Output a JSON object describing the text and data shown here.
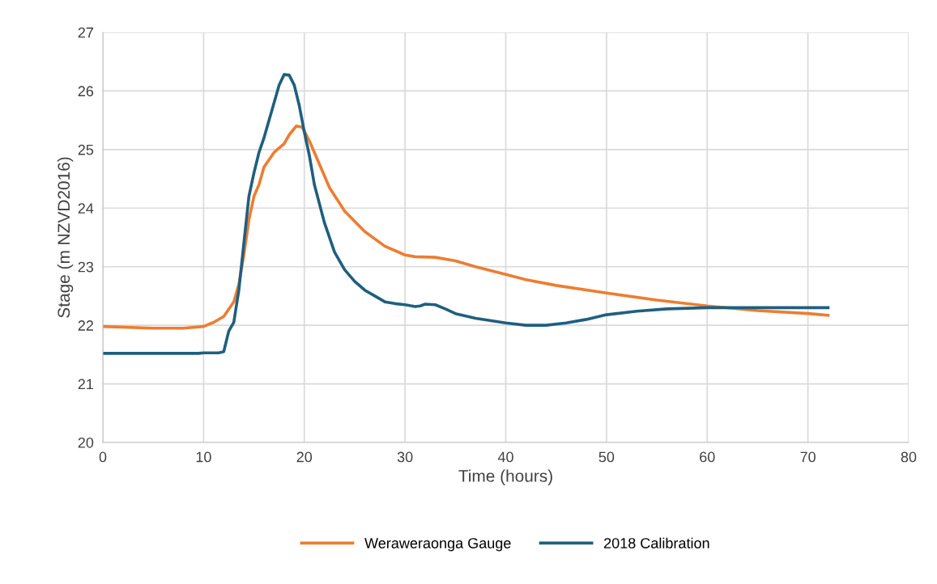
{
  "chart_data": {
    "type": "line",
    "xlabel": "Time (hours)",
    "ylabel": "Stage (m NZVD2016)",
    "xlim": [
      0,
      80
    ],
    "xticks": [
      0,
      10,
      20,
      30,
      40,
      50,
      60,
      70,
      80
    ],
    "ylim": [
      20,
      27
    ],
    "yticks": [
      20,
      21,
      22,
      23,
      24,
      25,
      26,
      27
    ],
    "grid": true,
    "legend": "bottom",
    "marker": "none",
    "line_style": "solid",
    "series": [
      {
        "name": "Weraweraonga Gauge",
        "color": "#ed7d31",
        "x": [
          0,
          5,
          8,
          10,
          11,
          12,
          13,
          13.5,
          14,
          14.5,
          15,
          15.5,
          16,
          17,
          18,
          18.5,
          19.2,
          19.8,
          20.5,
          21.5,
          22.5,
          24,
          26,
          28,
          30,
          31,
          33,
          35,
          37,
          40,
          42,
          45,
          50,
          55,
          60,
          65,
          70,
          72
        ],
        "values": [
          21.98,
          21.95,
          21.95,
          21.98,
          22.05,
          22.15,
          22.4,
          22.7,
          23.2,
          23.8,
          24.2,
          24.4,
          24.7,
          24.95,
          25.1,
          25.25,
          25.4,
          25.38,
          25.15,
          24.75,
          24.35,
          23.95,
          23.6,
          23.35,
          23.2,
          23.17,
          23.16,
          23.1,
          23.0,
          22.87,
          22.78,
          22.68,
          22.55,
          22.43,
          22.33,
          22.25,
          22.2,
          22.17
        ]
      },
      {
        "name": "2018 Calibration",
        "color": "#1f5f7f",
        "x": [
          0,
          9.5,
          10,
          11.5,
          12,
          12.5,
          13,
          13.5,
          14,
          14.5,
          15,
          15.5,
          16,
          17,
          17.5,
          18,
          18.5,
          19,
          19.5,
          20,
          20.5,
          21,
          22,
          23,
          24,
          25,
          26,
          27,
          28,
          29,
          30,
          31,
          31.5,
          32,
          33,
          34,
          35,
          37,
          40,
          42,
          44,
          46,
          48,
          50,
          53,
          56,
          60,
          65,
          70,
          72
        ],
        "values": [
          21.52,
          21.52,
          21.53,
          21.53,
          21.55,
          21.9,
          22.05,
          22.6,
          23.4,
          24.2,
          24.6,
          24.95,
          25.2,
          25.8,
          26.1,
          26.28,
          26.27,
          26.1,
          25.75,
          25.3,
          24.9,
          24.4,
          23.75,
          23.25,
          22.95,
          22.75,
          22.6,
          22.5,
          22.4,
          22.37,
          22.35,
          22.32,
          22.33,
          22.36,
          22.35,
          22.28,
          22.2,
          22.12,
          22.04,
          22.0,
          22.0,
          22.04,
          22.1,
          22.18,
          22.24,
          22.28,
          22.3,
          22.3,
          22.3,
          22.3
        ]
      }
    ]
  }
}
